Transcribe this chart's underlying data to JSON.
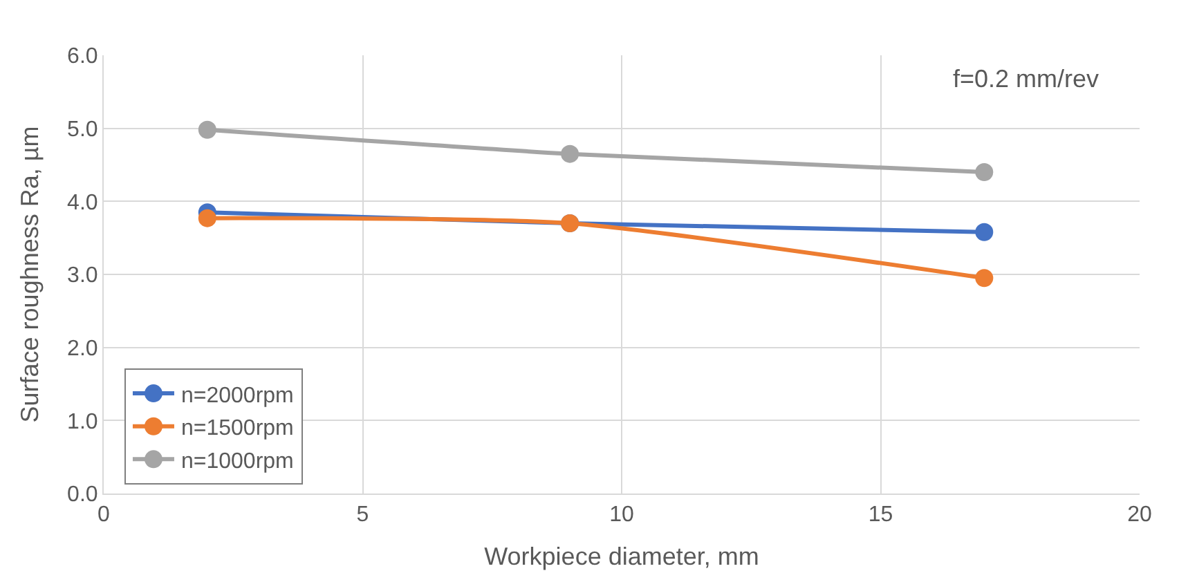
{
  "chart_data": {
    "type": "line",
    "xlabel": "Workpiece diameter, mm",
    "ylabel": "Surface roughness Ra, µm",
    "x": [
      2,
      9,
      17
    ],
    "series": [
      {
        "name": "n=2000rpm",
        "color": "#4472c4",
        "values": [
          3.85,
          3.7,
          3.58
        ]
      },
      {
        "name": "n=1500rpm",
        "color": "#ed7d31",
        "values": [
          3.77,
          3.7,
          2.95
        ]
      },
      {
        "name": "n=1000rpm",
        "color": "#a5a5a5",
        "values": [
          4.98,
          4.65,
          4.4
        ]
      }
    ],
    "xlim": [
      0,
      20
    ],
    "xticks": [
      0,
      5,
      10,
      15,
      20
    ],
    "ylim": [
      0,
      6
    ],
    "yticks": [
      {
        "value": 0,
        "label": "0.0"
      },
      {
        "value": 1,
        "label": "1.0"
      },
      {
        "value": 2,
        "label": "2.0"
      },
      {
        "value": 3,
        "label": "3.0"
      },
      {
        "value": 4,
        "label": "4.0"
      },
      {
        "value": 5,
        "label": "5.0"
      },
      {
        "value": 6,
        "label": "6.0"
      }
    ],
    "annotations": [
      "f=0.2 mm/rev"
    ],
    "grid": true,
    "legend": "bottom left",
    "marker": "circle",
    "line_style": "solid"
  }
}
